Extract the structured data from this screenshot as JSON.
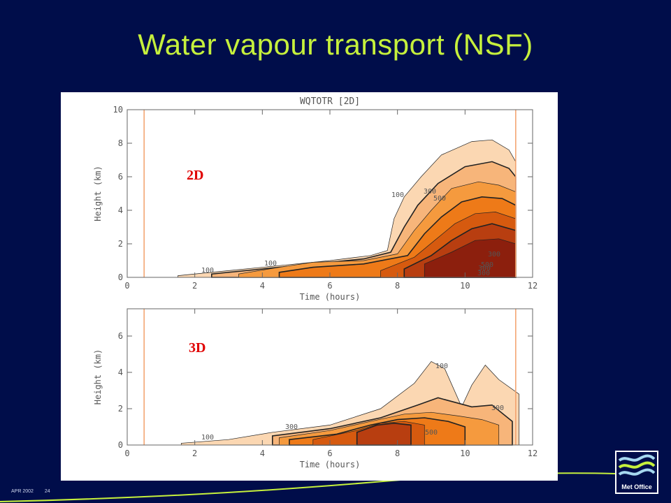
{
  "slide": {
    "title": "Water vapour transport (NSF)",
    "footer_date": "APR 2002",
    "footer_page": "24",
    "logo_text": "Met Office"
  },
  "colors": {
    "background": "#000d4a",
    "title": "#c6f03c",
    "panel_label": "#e00000",
    "contour_fills": [
      "#fbd7b2",
      "#f7b57a",
      "#f59a3e",
      "#ee7a18",
      "#d65a0f",
      "#b83e10",
      "#8c1f0d"
    ]
  },
  "chart_data": [
    {
      "type": "heatmap",
      "title": "WQTOTR [2D]",
      "panel_label": "2D",
      "xlabel": "Time (hours)",
      "ylabel": "Height (km)",
      "xlim": [
        0,
        12
      ],
      "ylim": [
        0,
        10
      ],
      "xticks": [
        "0",
        "2",
        "4",
        "6",
        "8",
        "10",
        "12"
      ],
      "yticks": [
        "0",
        "2",
        "4",
        "6",
        "8",
        "10"
      ],
      "contour_labels": [
        "100",
        "100",
        "300",
        "300",
        "500",
        "500",
        "300",
        "100",
        "300"
      ],
      "contour_levels": [
        {
          "x": [
            1.5,
            3,
            4.5,
            6,
            7.2,
            7.7,
            7.9,
            8.2,
            8.7,
            9.3,
            10.2,
            10.8,
            11.3,
            11.5
          ],
          "top": [
            0.1,
            0.4,
            0.7,
            1.0,
            1.3,
            1.6,
            3.5,
            4.8,
            6.0,
            7.3,
            8.1,
            8.2,
            7.6,
            6.9
          ]
        },
        {
          "x": [
            2.5,
            4,
            5.5,
            7,
            7.8,
            8.2,
            8.6,
            9.2,
            10,
            10.8,
            11.3,
            11.5
          ],
          "top": [
            0.2,
            0.5,
            0.8,
            1.1,
            1.5,
            3.0,
            4.3,
            5.6,
            6.6,
            6.9,
            6.5,
            6.0
          ]
        },
        {
          "x": [
            3.3,
            4.5,
            5.5,
            7,
            8.0,
            8.5,
            9.0,
            9.6,
            10.4,
            11,
            11.5
          ],
          "top": [
            0.2,
            0.6,
            0.9,
            1.0,
            1.4,
            2.8,
            4.0,
            5.3,
            5.7,
            5.5,
            5.1
          ]
        },
        {
          "x": [
            4.5,
            5.5,
            7,
            8.3,
            8.8,
            9.3,
            9.9,
            10.5,
            11.1,
            11.5
          ],
          "top": [
            0.3,
            0.6,
            0.8,
            1.3,
            2.6,
            3.6,
            4.5,
            4.8,
            4.7,
            4.3
          ]
        },
        {
          "x": [
            7.5,
            8.5,
            9.1,
            9.7,
            10.3,
            10.9,
            11.5
          ],
          "top": [
            0.4,
            1.2,
            2.2,
            3.2,
            3.8,
            3.9,
            3.5
          ]
        },
        {
          "x": [
            8.2,
            9.0,
            9.6,
            10.2,
            10.8,
            11.5
          ],
          "top": [
            0.5,
            1.3,
            2.2,
            2.9,
            3.2,
            2.8
          ]
        },
        {
          "x": [
            8.8,
            9.6,
            10.3,
            11.0,
            11.5
          ],
          "top": [
            0.8,
            1.5,
            2.2,
            2.3,
            2.0
          ]
        }
      ]
    },
    {
      "type": "heatmap",
      "title": "",
      "panel_label": "3D",
      "xlabel": "Time (hours)",
      "ylabel": "Height (km)",
      "xlim": [
        0,
        12
      ],
      "ylim": [
        0,
        7.5
      ],
      "xticks": [
        "0",
        "2",
        "4",
        "6",
        "8",
        "10",
        "12"
      ],
      "yticks": [
        "0",
        "2",
        "4",
        "6"
      ],
      "contour_labels": [
        "100",
        "100",
        "300",
        "300",
        "500"
      ],
      "contour_levels": [
        {
          "x": [
            1.6,
            3,
            4.3,
            6,
            7.5,
            8.5,
            9.0,
            9.4,
            9.9,
            10.2,
            10.6,
            11.0,
            11.6
          ],
          "top": [
            0.1,
            0.3,
            0.7,
            1.1,
            2.0,
            3.4,
            4.6,
            4.2,
            2.1,
            3.3,
            4.4,
            3.6,
            2.8
          ]
        },
        {
          "x": [
            4.3,
            6,
            7.5,
            8.6,
            9.2,
            9.8,
            10.2,
            10.8,
            11.4
          ],
          "top": [
            0.5,
            0.9,
            1.5,
            2.2,
            2.6,
            2.3,
            2.1,
            2.2,
            1.3
          ]
        },
        {
          "x": [
            4.5,
            6,
            7.2,
            8.2,
            9.0,
            9.8,
            10.5,
            11.0
          ],
          "top": [
            0.4,
            0.8,
            1.3,
            1.7,
            1.8,
            1.6,
            1.4,
            1.1
          ]
        },
        {
          "x": [
            4.8,
            6.2,
            7.2,
            8.0,
            8.8,
            9.5,
            10.0
          ],
          "top": [
            0.3,
            0.6,
            1.1,
            1.4,
            1.5,
            1.3,
            1.0
          ]
        },
        {
          "x": [
            5.5,
            6.8,
            7.5,
            8.2,
            8.8
          ],
          "top": [
            0.3,
            0.8,
            1.2,
            1.3,
            1.1
          ]
        },
        {
          "x": [
            6.8,
            7.4,
            7.9,
            8.4
          ],
          "top": [
            0.7,
            1.1,
            1.2,
            1.1
          ]
        }
      ]
    }
  ]
}
